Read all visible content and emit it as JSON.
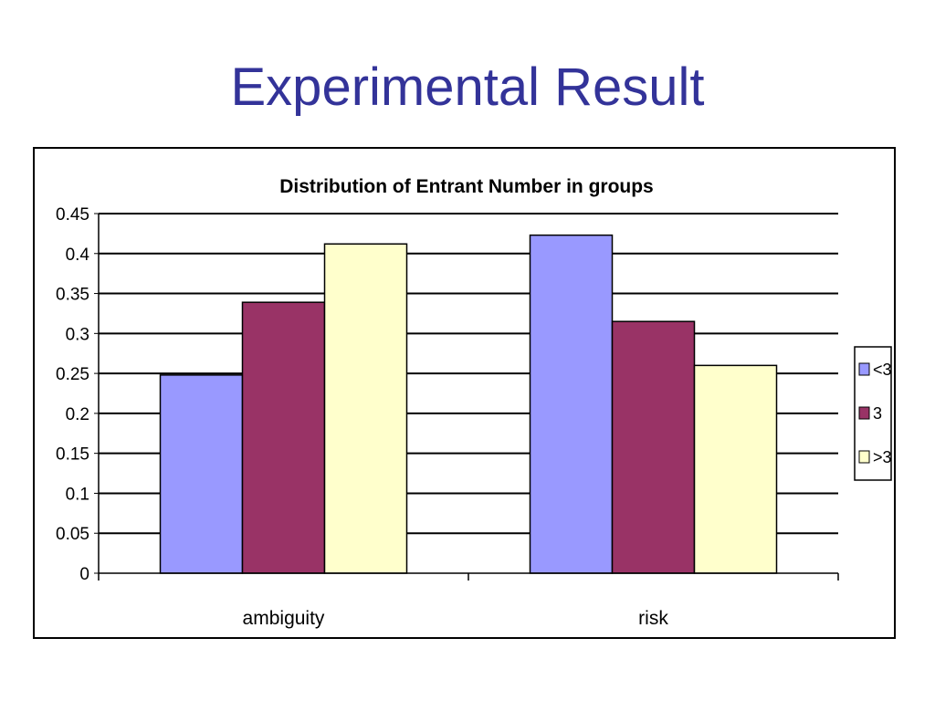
{
  "slide": {
    "title": "Experimental Result"
  },
  "chart_data": {
    "type": "bar",
    "title": "Distribution of Entrant Number in groups",
    "categories": [
      "ambiguity",
      "risk"
    ],
    "series": [
      {
        "name": "<3",
        "values": [
          0.248,
          0.423
        ],
        "color": "#9999FF"
      },
      {
        "name": "3",
        "values": [
          0.339,
          0.315
        ],
        "color": "#993366"
      },
      {
        "name": ">3",
        "values": [
          0.412,
          0.26
        ],
        "color": "#FFFFCC"
      }
    ],
    "ylim": [
      0,
      0.45
    ],
    "yticks": [
      "0",
      "0.05",
      "0.1",
      "0.15",
      "0.2",
      "0.25",
      "0.3",
      "0.35",
      "0.4",
      "0.45"
    ],
    "xlabel": "",
    "ylabel": "",
    "grid": true,
    "legend_position": "right"
  }
}
